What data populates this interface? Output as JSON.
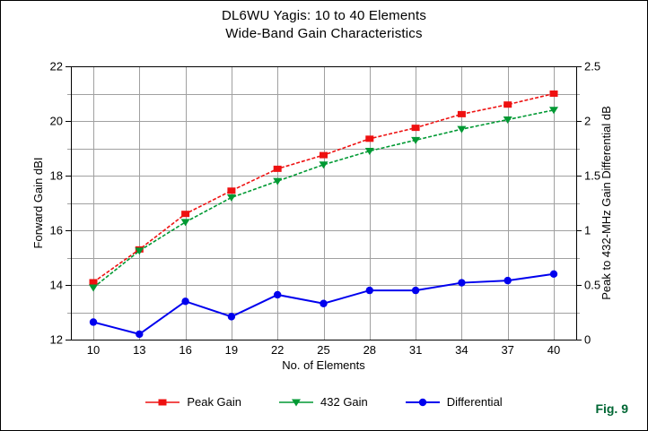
{
  "title": {
    "line1": "DL6WU Yagis: 10 to 40 Elements",
    "line2": "Wide-Band Gain Characteristics"
  },
  "fig_label": "Fig. 9",
  "chart_data": {
    "type": "line",
    "x": [
      10,
      13,
      16,
      19,
      22,
      25,
      28,
      31,
      34,
      37,
      40
    ],
    "xlabel": "No. of Elements",
    "ylabel_left": "Forward Gain dBI",
    "ylabel_right": "Peak to 432-MHz Gain Differential dB",
    "ylim_left": [
      12,
      22
    ],
    "ylim_right": [
      0,
      2.5
    ],
    "yticks_left": [
      12,
      14,
      16,
      18,
      20,
      22
    ],
    "yticks_right": [
      "0",
      "0.5",
      "1",
      "1.5",
      "2",
      "2.5"
    ],
    "grid": true,
    "legend_position": "bottom",
    "series": [
      {
        "name": "Peak Gain",
        "axis": "left",
        "color": "#ee1111",
        "marker": "square",
        "line_style": "dashed",
        "values": [
          14.1,
          15.3,
          16.6,
          17.45,
          18.25,
          18.75,
          19.35,
          19.75,
          20.25,
          20.6,
          21.0
        ]
      },
      {
        "name": "432 Gain",
        "axis": "left",
        "color": "#009933",
        "marker": "triangle-down",
        "line_style": "dashed",
        "values": [
          13.9,
          15.25,
          16.3,
          17.2,
          17.8,
          18.4,
          18.9,
          19.3,
          19.7,
          20.05,
          20.4
        ]
      },
      {
        "name": "Differential",
        "axis": "right",
        "color": "#0000ee",
        "marker": "circle",
        "line_style": "solid",
        "values": [
          0.16,
          0.05,
          0.35,
          0.21,
          0.41,
          0.33,
          0.45,
          0.45,
          0.52,
          0.54,
          0.6
        ]
      }
    ],
    "colors": {
      "grid": "#a0a0a0",
      "axis": "#000000",
      "fig_label": "#006633"
    }
  }
}
